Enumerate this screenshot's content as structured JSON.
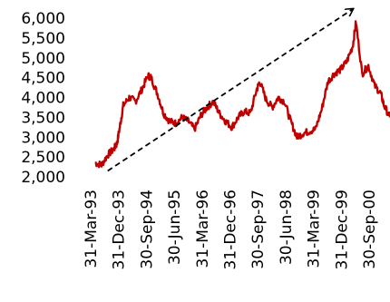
{
  "chart_data": {
    "type": "line",
    "title": "",
    "xlabel": "",
    "ylabel": "",
    "ylim": [
      2000,
      6000
    ],
    "y_ticks": [
      "6,000",
      "5,500",
      "5,000",
      "4,500",
      "4,000",
      "3,500",
      "3,000",
      "2,500",
      "2,000"
    ],
    "x_ticks": [
      "31-Mar-93",
      "31-Dec-93",
      "30-Sep-94",
      "30-Jun-95",
      "31-Mar-96",
      "31-Dec-96",
      "30-Sep-97",
      "30-Jun-98",
      "31-Mar-99",
      "31-Dec-99",
      "30-Sep-00"
    ],
    "grid": false,
    "legend": "none",
    "colors": {
      "series": "#c00000",
      "trend": "#000000"
    },
    "series": [
      {
        "values": [
          [
            "1993-03-31",
            2350
          ],
          [
            "1993-05-31",
            2300
          ],
          [
            "1993-07-31",
            2550
          ],
          [
            "1993-09-30",
            2700
          ],
          [
            "1993-10-31",
            2850
          ],
          [
            "1993-11-30",
            3300
          ],
          [
            "1993-12-31",
            3800
          ],
          [
            "1994-02-28",
            4000
          ],
          [
            "1994-04-30",
            3900
          ],
          [
            "1994-06-30",
            4200
          ],
          [
            "1994-08-31",
            4550
          ],
          [
            "1994-09-30",
            4500
          ],
          [
            "1994-11-30",
            4100
          ],
          [
            "1995-01-31",
            3600
          ],
          [
            "1995-03-31",
            3400
          ],
          [
            "1995-05-31",
            3350
          ],
          [
            "1995-07-31",
            3500
          ],
          [
            "1995-09-30",
            3400
          ],
          [
            "1995-11-30",
            3200
          ],
          [
            "1996-01-31",
            3550
          ],
          [
            "1996-03-31",
            3750
          ],
          [
            "1996-05-31",
            3900
          ],
          [
            "1996-07-31",
            3600
          ],
          [
            "1996-09-30",
            3400
          ],
          [
            "1996-11-30",
            3250
          ],
          [
            "1997-01-31",
            3500
          ],
          [
            "1997-03-31",
            3650
          ],
          [
            "1997-05-31",
            3600
          ],
          [
            "1997-07-31",
            4200
          ],
          [
            "1997-08-31",
            4400
          ],
          [
            "1997-10-31",
            3950
          ],
          [
            "1997-12-31",
            3750
          ],
          [
            "1998-02-28",
            4000
          ],
          [
            "1998-04-30",
            3900
          ],
          [
            "1998-06-30",
            3400
          ],
          [
            "1998-08-31",
            3000
          ],
          [
            "1998-10-31",
            3100
          ],
          [
            "1998-12-31",
            3150
          ],
          [
            "1999-02-28",
            3200
          ],
          [
            "1999-04-30",
            3700
          ],
          [
            "1999-06-30",
            4400
          ],
          [
            "1999-08-31",
            4600
          ],
          [
            "1999-10-31",
            4700
          ],
          [
            "1999-12-31",
            4900
          ],
          [
            "2000-02-29",
            5300
          ],
          [
            "2000-03-31",
            5900
          ],
          [
            "2000-05-31",
            4600
          ],
          [
            "2000-07-31",
            4800
          ],
          [
            "2000-09-30",
            4300
          ],
          [
            "2000-11-30",
            4100
          ],
          [
            "2000-12-31",
            3800
          ],
          [
            "2001-02-28",
            3500
          ]
        ]
      }
    ],
    "annotations": [
      {
        "type": "arrow",
        "style": "dashed",
        "from": [
          "1993-07-31",
          2150
        ],
        "to": [
          "2000-02-29",
          6000
        ]
      }
    ]
  }
}
